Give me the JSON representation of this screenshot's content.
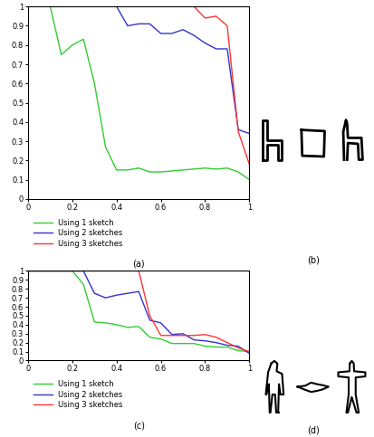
{
  "chart_data": [
    {
      "type": "line",
      "xlabel": "(a)",
      "x": [
        0,
        0.05,
        0.1,
        0.15,
        0.2,
        0.25,
        0.3,
        0.35,
        0.4,
        0.45,
        0.5,
        0.55,
        0.6,
        0.65,
        0.7,
        0.75,
        0.8,
        0.85,
        0.9,
        0.95,
        1.0
      ],
      "xlim": [
        0,
        1
      ],
      "xticks": [
        0,
        0.2,
        0.4,
        0.6,
        0.8,
        1
      ],
      "ylim": [
        0,
        1
      ],
      "yticks": [
        0,
        0.1,
        0.2,
        0.3,
        0.4,
        0.5,
        0.6,
        0.7,
        0.8,
        0.9,
        1
      ],
      "legend": "upper left",
      "series": [
        {
          "name": "Using 1 sketch",
          "color": "#33cc33",
          "values": [
            1,
            1,
            1,
            0.75,
            0.8,
            0.83,
            0.6,
            0.27,
            0.15,
            0.15,
            0.16,
            0.14,
            0.14,
            0.145,
            0.15,
            0.155,
            0.16,
            0.155,
            0.16,
            0.14,
            0.1
          ]
        },
        {
          "name": "Using 2 sketches",
          "color": "#3333cc",
          "values": [
            1,
            1,
            1,
            1,
            1,
            1,
            1,
            1,
            1,
            0.9,
            0.91,
            0.91,
            0.86,
            0.86,
            0.88,
            0.85,
            0.81,
            0.78,
            0.78,
            0.36,
            0.34
          ]
        },
        {
          "name": "Using 3 sketches",
          "color": "#ff3333",
          "values": [
            1,
            1,
            1,
            1,
            1,
            1,
            1,
            1,
            1,
            1,
            1,
            1,
            1,
            1,
            1,
            1,
            0.94,
            0.95,
            0.9,
            0.35,
            0.18
          ]
        }
      ]
    },
    {
      "type": "line",
      "xlabel": "(c)",
      "x": [
        0,
        0.05,
        0.1,
        0.15,
        0.2,
        0.25,
        0.3,
        0.35,
        0.4,
        0.45,
        0.5,
        0.55,
        0.6,
        0.65,
        0.7,
        0.75,
        0.8,
        0.85,
        0.9,
        0.95,
        1.0
      ],
      "xlim": [
        0,
        1
      ],
      "xticks": [
        0,
        0.2,
        0.4,
        0.6,
        0.8,
        1
      ],
      "ylim": [
        0,
        1
      ],
      "yticks": [
        0,
        0.1,
        0.2,
        0.3,
        0.4,
        0.5,
        0.6,
        0.7,
        0.8,
        0.9,
        1
      ],
      "legend": "upper left",
      "series": [
        {
          "name": "Using 1 sketch",
          "color": "#33cc33",
          "values": [
            1,
            1,
            1,
            1,
            1,
            0.85,
            0.43,
            0.42,
            0.4,
            0.37,
            0.38,
            0.26,
            0.24,
            0.19,
            0.19,
            0.19,
            0.16,
            0.15,
            0.15,
            0.11,
            0.1
          ]
        },
        {
          "name": "Using 2 sketches",
          "color": "#3333cc",
          "values": [
            1,
            1,
            1,
            1,
            1,
            1,
            0.75,
            0.7,
            0.73,
            0.75,
            0.77,
            0.45,
            0.42,
            0.29,
            0.3,
            0.23,
            0.22,
            0.2,
            0.17,
            0.16,
            0.08
          ]
        },
        {
          "name": "Using 3 sketches",
          "color": "#ff3333",
          "values": [
            1,
            1,
            1,
            1,
            1,
            1,
            1,
            1,
            1,
            1,
            1,
            0.5,
            0.28,
            0.28,
            0.28,
            0.28,
            0.29,
            0.26,
            0.2,
            0.14,
            0.1
          ]
        }
      ]
    }
  ],
  "sketches": [
    {
      "label": "(b)"
    },
    {
      "label": "(d)"
    }
  ]
}
